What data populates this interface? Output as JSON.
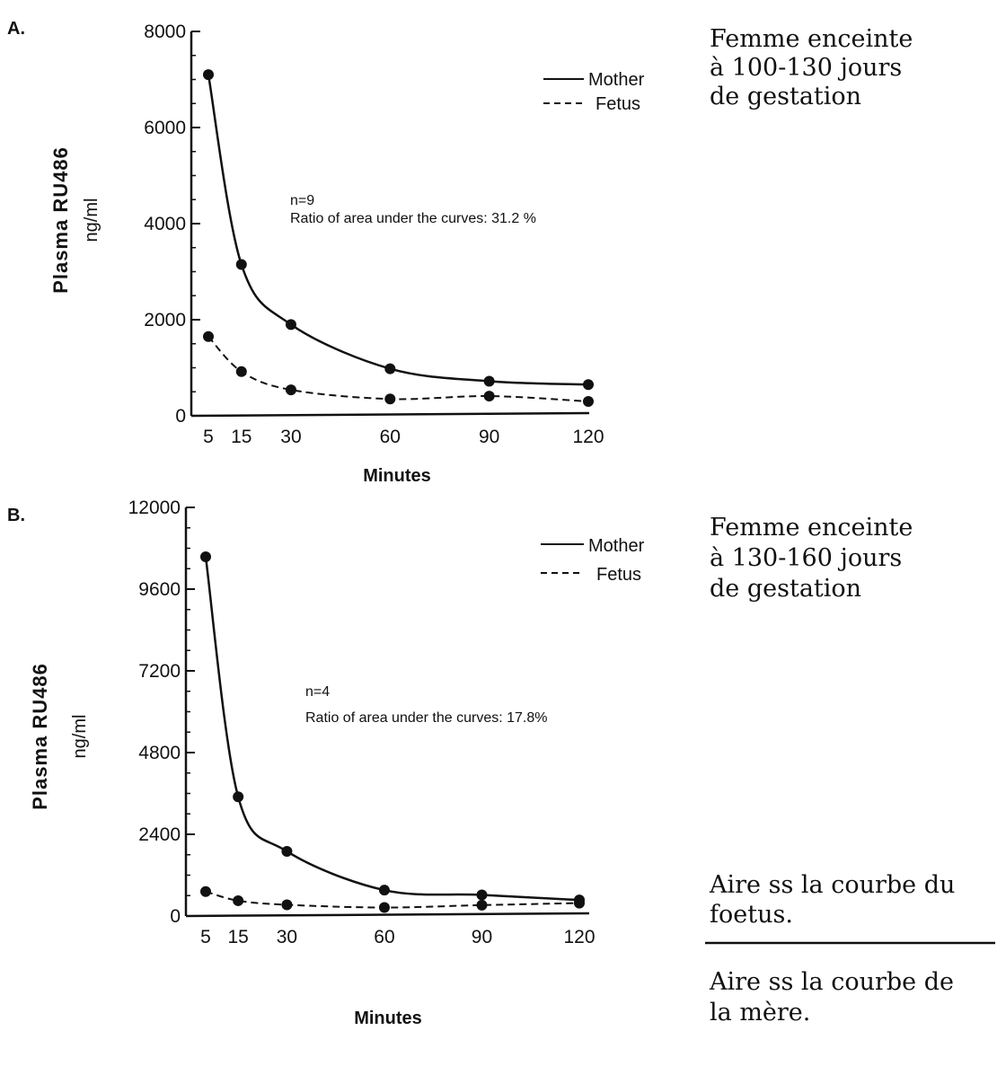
{
  "chart_data": [
    {
      "panel_label": "A.",
      "type": "line",
      "xlabel": "Minutes",
      "ylabel_line1": "Plasma RU486",
      "ylabel_line2": "ng/ml",
      "x": [
        5,
        15,
        30,
        60,
        90,
        120
      ],
      "x_ticks": [
        5,
        15,
        30,
        60,
        90,
        120
      ],
      "y_ticks": [
        0,
        2000,
        4000,
        6000,
        8000
      ],
      "ylim": [
        0,
        8000
      ],
      "series": [
        {
          "name": "Mother",
          "style": "solid",
          "values": [
            7100,
            3150,
            1900,
            980,
            720,
            650
          ]
        },
        {
          "name": "Fetus",
          "style": "dashed",
          "values": [
            1650,
            920,
            540,
            350,
            410,
            300
          ]
        }
      ],
      "legend": {
        "placement": "top-right"
      },
      "annotation_line1": "n=9",
      "annotation_line2": "Ratio of area under the curves: 31.2 %",
      "caption": [
        "Femme enceinte",
        "à 100-130 jours",
        "de gestation"
      ]
    },
    {
      "panel_label": "B.",
      "type": "line",
      "xlabel": "Minutes",
      "ylabel_line1": "Plasma RU486",
      "ylabel_line2": "ng/ml",
      "x": [
        5,
        15,
        30,
        60,
        90,
        120
      ],
      "x_ticks": [
        5,
        15,
        30,
        60,
        90,
        120
      ],
      "y_ticks": [
        0,
        2400,
        4800,
        7200,
        9600,
        12000
      ],
      "ylim": [
        0,
        12000
      ],
      "series": [
        {
          "name": "Mother",
          "style": "solid",
          "values": [
            10550,
            3500,
            1900,
            760,
            620,
            470
          ]
        },
        {
          "name": "Fetus",
          "style": "dashed",
          "values": [
            720,
            450,
            330,
            250,
            320,
            380
          ]
        }
      ],
      "legend": {
        "placement": "top-right"
      },
      "annotation_line1": "n=4",
      "annotation_line2": "Ratio of area under the curves: 17.8%",
      "caption": [
        "Femme enceinte",
        "à 130-160 jours",
        "de gestation"
      ]
    }
  ],
  "fraction": {
    "numerator": [
      "Aire ss la courbe du",
      "foetus."
    ],
    "denominator": [
      "Aire ss la courbe de",
      "la mère."
    ]
  }
}
